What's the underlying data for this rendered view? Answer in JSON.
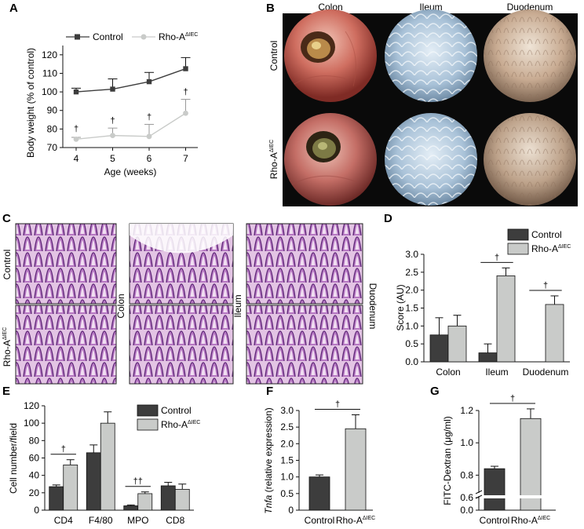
{
  "panels": {
    "A": "A",
    "B": "B",
    "C": "C",
    "D": "D",
    "E": "E",
    "F": "F",
    "G": "G"
  },
  "colors": {
    "control": "#3d3d3d",
    "rho": "#c9cbc9",
    "axis": "#111111"
  },
  "legend": {
    "control": "Control",
    "rho_base": "Rho-A",
    "rho_sup": "ΔIEC"
  },
  "panelB": {
    "columns": [
      "Colon",
      "Ileum",
      "Duodenum"
    ],
    "rows": [
      "Control",
      "Rho-A"
    ],
    "row_sup": "ΔIEC"
  },
  "panelC": {
    "rows": [
      "Control",
      "Rho-A"
    ],
    "row_sup": "ΔIEC",
    "columns": [
      "Colon",
      "Ileum",
      "Duodenum"
    ]
  },
  "dagger": "†",
  "double_dagger": "††",
  "chart_data": [
    {
      "panel": "A",
      "type": "line",
      "xlabel": "Age (weeks)",
      "ylabel": "Body weight (% of control)",
      "x": [
        4,
        5,
        6,
        7
      ],
      "xticks": [
        "4",
        "5",
        "6",
        "7"
      ],
      "ylim": [
        70,
        125
      ],
      "yticks": [
        70,
        80,
        90,
        100,
        110,
        120
      ],
      "series": [
        {
          "name": "Control",
          "values": [
            100,
            101.5,
            105.5,
            112.5
          ],
          "errors": [
            2,
            5.5,
            5,
            6
          ]
        },
        {
          "name": "Rho-AΔIEC",
          "values": [
            74.5,
            76.5,
            76,
            88.5
          ],
          "errors": [
            1,
            4,
            6.5,
            7.5
          ]
        }
      ],
      "significance": [
        "†",
        "†",
        "†",
        "†"
      ]
    },
    {
      "panel": "D",
      "type": "bar",
      "ylabel": "Score (AU)",
      "categories": [
        "Colon",
        "Ileum",
        "Duodenum"
      ],
      "ylim": [
        0,
        3.0
      ],
      "yticks": [
        "0.0",
        "0.5",
        "1.0",
        "1.5",
        "2.0",
        "2.5",
        "3.0"
      ],
      "series": [
        {
          "name": "Control",
          "values": [
            0.75,
            0.25,
            0
          ],
          "errors": [
            0.48,
            0.25,
            0
          ]
        },
        {
          "name": "Rho-AΔIEC",
          "values": [
            1.0,
            2.4,
            1.6
          ],
          "errors": [
            0.3,
            0.22,
            0.24
          ]
        }
      ],
      "significance": [
        "",
        "†",
        "†"
      ]
    },
    {
      "panel": "E",
      "type": "bar",
      "ylabel": "Cell number/field",
      "categories": [
        "CD4",
        "F4/80",
        "MPO",
        "CD8"
      ],
      "ylim": [
        0,
        120
      ],
      "yticks": [
        "0",
        "20",
        "40",
        "60",
        "80",
        "100",
        "120"
      ],
      "series": [
        {
          "name": "Control",
          "values": [
            27,
            66,
            5,
            28
          ],
          "errors": [
            2,
            9,
            1,
            4
          ]
        },
        {
          "name": "Rho-AΔIEC",
          "values": [
            52,
            100,
            19,
            24
          ],
          "errors": [
            6,
            13,
            2,
            6
          ]
        }
      ],
      "significance": [
        "†",
        "",
        "††",
        ""
      ]
    },
    {
      "panel": "F",
      "type": "bar",
      "ylabel_italic": "Tnfa",
      "ylabel": " (relative expression)",
      "categories": [
        "Control",
        "Rho-AΔIEC"
      ],
      "ylim": [
        0,
        3.0
      ],
      "yticks": [
        "0",
        "0.5",
        "1.0",
        "1.5",
        "2.0",
        "2.5",
        "3.0"
      ],
      "values": [
        1.0,
        2.45
      ],
      "errors": [
        0.06,
        0.42
      ],
      "significance": "†"
    },
    {
      "panel": "G",
      "type": "bar",
      "ylabel": "FITC-Dextran (μg/ml)",
      "categories": [
        "Control",
        "Rho-AΔIEC"
      ],
      "ylim": [
        0,
        1.2
      ],
      "axis_break": [
        0.6,
        0.7
      ],
      "yticks": [
        "0.0",
        "0.6",
        "0.8",
        "1.0",
        "1.2"
      ],
      "values": [
        0.84,
        1.15
      ],
      "errors": [
        0.015,
        0.06
      ],
      "significance": "†"
    }
  ]
}
